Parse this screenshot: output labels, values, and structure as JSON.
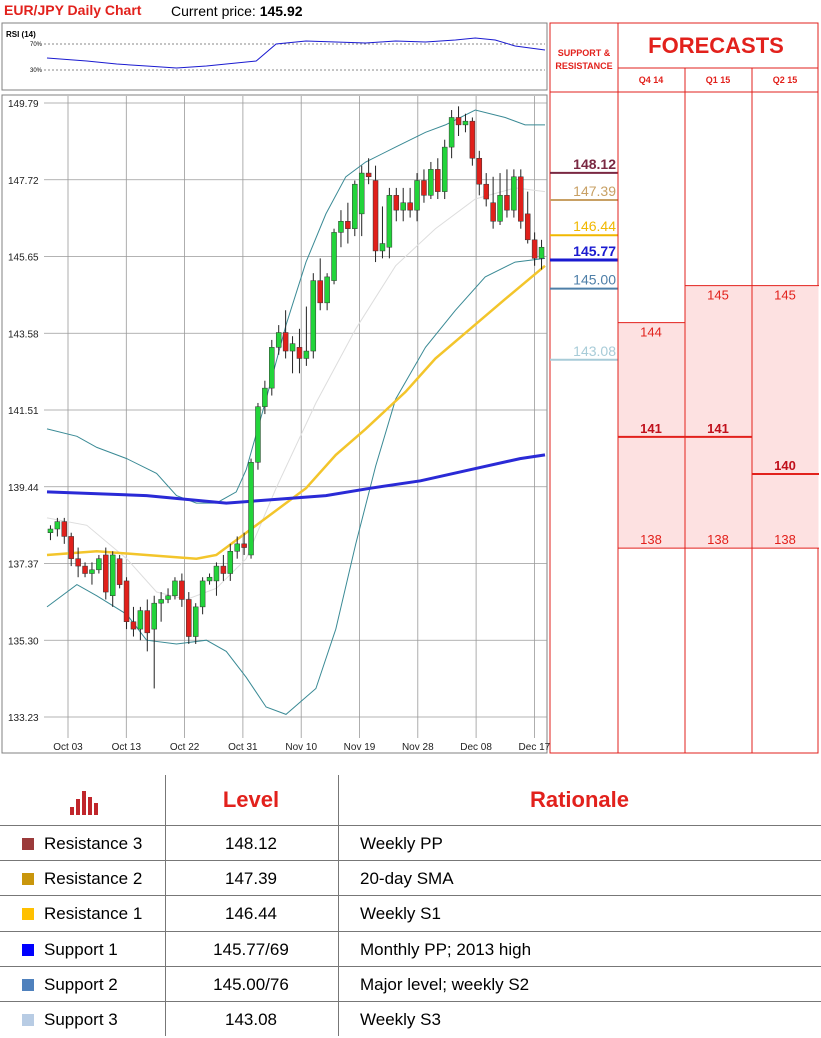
{
  "header": {
    "title": "EUR/JPY Daily Chart",
    "price_label": "Current price:",
    "price_value": "145.92"
  },
  "rsi": {
    "label": "RSI (14)",
    "levels": [
      "70%",
      "30%"
    ]
  },
  "chart_data": {
    "type": "candlestick",
    "title": "EUR/JPY Daily Chart",
    "ylim": [
      133.23,
      149.79
    ],
    "yticks": [
      "149.79",
      "147.72",
      "145.65",
      "143.58",
      "141.51",
      "139.44",
      "137.37",
      "135.30",
      "133.23"
    ],
    "xticks": [
      "Oct 03",
      "Oct 13",
      "Oct 22",
      "Oct 31",
      "Nov 10",
      "Nov 19",
      "Nov 28",
      "Dec 08",
      "Dec 17"
    ],
    "candles": [
      [
        138.2,
        138.4,
        138.0,
        138.3
      ],
      [
        138.3,
        138.6,
        138.1,
        138.5
      ],
      [
        138.5,
        138.6,
        137.9,
        138.1
      ],
      [
        138.1,
        138.2,
        137.3,
        137.5
      ],
      [
        137.5,
        137.8,
        137.0,
        137.3
      ],
      [
        137.3,
        137.4,
        137.0,
        137.1
      ],
      [
        137.1,
        137.4,
        136.8,
        137.2
      ],
      [
        137.2,
        137.6,
        137.1,
        137.5
      ],
      [
        137.6,
        137.8,
        136.4,
        136.6
      ],
      [
        136.5,
        137.7,
        136.2,
        137.6
      ],
      [
        137.5,
        137.6,
        136.7,
        136.8
      ],
      [
        136.9,
        137.0,
        135.6,
        135.8
      ],
      [
        135.8,
        136.2,
        135.4,
        135.6
      ],
      [
        135.6,
        136.2,
        135.3,
        136.1
      ],
      [
        136.1,
        136.4,
        135.0,
        135.5
      ],
      [
        135.6,
        136.5,
        134.0,
        136.3
      ],
      [
        136.3,
        136.6,
        135.8,
        136.4
      ],
      [
        136.4,
        136.7,
        136.3,
        136.5
      ],
      [
        136.5,
        137.0,
        136.4,
        136.9
      ],
      [
        136.9,
        137.1,
        136.2,
        136.4
      ],
      [
        136.4,
        136.6,
        135.2,
        135.4
      ],
      [
        135.4,
        136.3,
        135.2,
        136.2
      ],
      [
        136.2,
        137.0,
        136.0,
        136.9
      ],
      [
        136.9,
        137.1,
        136.8,
        137.0
      ],
      [
        136.9,
        137.4,
        136.5,
        137.3
      ],
      [
        137.3,
        137.6,
        136.9,
        137.1
      ],
      [
        137.1,
        137.9,
        136.9,
        137.7
      ],
      [
        137.7,
        138.1,
        137.5,
        137.9
      ],
      [
        137.9,
        138.2,
        137.6,
        137.8
      ],
      [
        137.6,
        140.2,
        137.5,
        140.1
      ],
      [
        140.1,
        141.7,
        139.9,
        141.6
      ],
      [
        141.6,
        142.3,
        141.4,
        142.1
      ],
      [
        142.1,
        143.4,
        141.9,
        143.2
      ],
      [
        143.2,
        143.8,
        143.0,
        143.6
      ],
      [
        143.6,
        144.2,
        142.9,
        143.1
      ],
      [
        143.1,
        143.5,
        142.5,
        143.3
      ],
      [
        143.2,
        143.7,
        142.5,
        142.9
      ],
      [
        142.9,
        144.3,
        142.7,
        143.1
      ],
      [
        143.1,
        145.2,
        142.9,
        145.0
      ],
      [
        145.0,
        145.6,
        144.2,
        144.4
      ],
      [
        144.4,
        145.2,
        144.2,
        145.1
      ],
      [
        145.0,
        146.4,
        144.9,
        146.3
      ],
      [
        146.3,
        146.9,
        145.9,
        146.6
      ],
      [
        146.6,
        147.1,
        146.0,
        146.4
      ],
      [
        146.4,
        147.7,
        146.2,
        147.6
      ],
      [
        146.8,
        148.1,
        146.2,
        147.9
      ],
      [
        147.9,
        148.3,
        147.6,
        147.8
      ],
      [
        147.7,
        148.1,
        145.5,
        145.8
      ],
      [
        145.8,
        147.0,
        145.6,
        146.0
      ],
      [
        145.9,
        147.5,
        145.6,
        147.3
      ],
      [
        147.3,
        147.5,
        146.6,
        146.9
      ],
      [
        146.9,
        147.5,
        146.6,
        147.1
      ],
      [
        147.1,
        147.5,
        146.7,
        146.9
      ],
      [
        146.9,
        147.9,
        146.6,
        147.7
      ],
      [
        147.7,
        148.0,
        147.1,
        147.3
      ],
      [
        147.3,
        148.2,
        147.2,
        148.0
      ],
      [
        148.0,
        148.3,
        147.2,
        147.4
      ],
      [
        147.4,
        148.8,
        147.2,
        148.6
      ],
      [
        148.6,
        149.6,
        148.3,
        149.4
      ],
      [
        149.4,
        149.7,
        148.9,
        149.2
      ],
      [
        149.2,
        149.5,
        149.0,
        149.3
      ],
      [
        149.3,
        149.4,
        148.1,
        148.3
      ],
      [
        148.3,
        148.5,
        147.3,
        147.6
      ],
      [
        147.6,
        147.9,
        147.0,
        147.2
      ],
      [
        147.1,
        147.8,
        146.4,
        146.6
      ],
      [
        146.6,
        147.9,
        146.5,
        147.3
      ],
      [
        147.3,
        148.0,
        146.7,
        146.9
      ],
      [
        146.9,
        148.0,
        146.7,
        147.8
      ],
      [
        147.8,
        148.0,
        146.4,
        146.6
      ],
      [
        146.8,
        147.4,
        146.0,
        146.1
      ],
      [
        146.1,
        146.3,
        145.4,
        145.6
      ],
      [
        145.6,
        146.1,
        145.3,
        145.9
      ]
    ],
    "sma200": [
      [
        0,
        139.3
      ],
      [
        20,
        139.2
      ],
      [
        36,
        139.0
      ],
      [
        46,
        139.1
      ],
      [
        56,
        139.2
      ],
      [
        65,
        139.4
      ],
      [
        75,
        139.6
      ],
      [
        85,
        139.9
      ],
      [
        95,
        140.2
      ],
      [
        100,
        140.3
      ]
    ],
    "sma55": [
      [
        0,
        137.6
      ],
      [
        10,
        137.7
      ],
      [
        20,
        137.6
      ],
      [
        30,
        137.5
      ],
      [
        34,
        137.6
      ],
      [
        40,
        138.2
      ],
      [
        46,
        138.8
      ],
      [
        52,
        139.4
      ],
      [
        58,
        140.3
      ],
      [
        64,
        141.0
      ],
      [
        72,
        142.0
      ],
      [
        78,
        142.9
      ],
      [
        85,
        143.7
      ],
      [
        92,
        144.5
      ],
      [
        100,
        145.4
      ]
    ],
    "sma20": [
      [
        0,
        138.6
      ],
      [
        8,
        138.4
      ],
      [
        16,
        137.5
      ],
      [
        22,
        136.6
      ],
      [
        28,
        136.4
      ],
      [
        34,
        136.7
      ],
      [
        40,
        137.5
      ],
      [
        46,
        139.4
      ],
      [
        54,
        141.7
      ],
      [
        62,
        143.7
      ],
      [
        70,
        145.4
      ],
      [
        78,
        146.4
      ],
      [
        86,
        147.2
      ],
      [
        94,
        147.5
      ],
      [
        100,
        147.4
      ]
    ],
    "bb_upper": [
      [
        0,
        141.0
      ],
      [
        6,
        140.8
      ],
      [
        10,
        140.5
      ],
      [
        16,
        140.2
      ],
      [
        22,
        139.8
      ],
      [
        26,
        139.2
      ],
      [
        30,
        139.0
      ],
      [
        34,
        139.0
      ],
      [
        38,
        139.3
      ],
      [
        40,
        139.9
      ],
      [
        44,
        141.8
      ],
      [
        48,
        143.8
      ],
      [
        52,
        145.5
      ],
      [
        56,
        146.8
      ],
      [
        60,
        147.8
      ],
      [
        64,
        148.2
      ],
      [
        70,
        148.6
      ],
      [
        76,
        149.0
      ],
      [
        80,
        149.2
      ],
      [
        86,
        149.6
      ],
      [
        92,
        149.4
      ],
      [
        96,
        149.2
      ],
      [
        100,
        149.2
      ]
    ],
    "bb_lower": [
      [
        0,
        136.2
      ],
      [
        6,
        136.8
      ],
      [
        10,
        136.5
      ],
      [
        16,
        136.0
      ],
      [
        20,
        135.3
      ],
      [
        26,
        135.2
      ],
      [
        32,
        135.3
      ],
      [
        36,
        135.0
      ],
      [
        40,
        134.3
      ],
      [
        44,
        133.5
      ],
      [
        48,
        133.3
      ],
      [
        54,
        134.0
      ],
      [
        58,
        135.6
      ],
      [
        62,
        137.9
      ],
      [
        66,
        140.0
      ],
      [
        70,
        141.8
      ],
      [
        76,
        143.2
      ],
      [
        82,
        144.2
      ],
      [
        88,
        145.1
      ],
      [
        94,
        145.5
      ],
      [
        100,
        145.6
      ]
    ],
    "rsi_series": [
      [
        0,
        50
      ],
      [
        8,
        47
      ],
      [
        14,
        44
      ],
      [
        20,
        42
      ],
      [
        26,
        40
      ],
      [
        32,
        42
      ],
      [
        38,
        45
      ],
      [
        42,
        47
      ],
      [
        46,
        64
      ],
      [
        52,
        67
      ],
      [
        58,
        66
      ],
      [
        64,
        65
      ],
      [
        70,
        67
      ],
      [
        76,
        66
      ],
      [
        82,
        68
      ],
      [
        86,
        70
      ],
      [
        90,
        68
      ],
      [
        94,
        62
      ],
      [
        100,
        58
      ]
    ]
  },
  "levels_panel": {
    "title": "SUPPORT & RESISTANCE",
    "levels": [
      {
        "value": "148.12",
        "color": "#7a2842"
      },
      {
        "value": "147.39",
        "color": "#c8a064"
      },
      {
        "value": "146.44",
        "color": "#f1b800"
      },
      {
        "value": "145.77",
        "color": "#1a1ad0"
      },
      {
        "value": "145.00",
        "color": "#4e7fa8"
      },
      {
        "value": "143.08",
        "color": "#a8ccd8"
      }
    ]
  },
  "forecasts": {
    "title": "FORECASTS",
    "columns": [
      {
        "label": "Q4 14",
        "top": "144",
        "mid": "141",
        "bot": "138"
      },
      {
        "label": "Q1 15",
        "top": "145",
        "mid": "141",
        "bot": "138"
      },
      {
        "label": "Q2 15",
        "top": "145",
        "mid": "140",
        "bot": "138"
      }
    ]
  },
  "table": {
    "headers": {
      "level": "Level",
      "rationale": "Rationale"
    },
    "rows": [
      {
        "name": "Resistance 3",
        "level": "148.12",
        "rationale": "Weekly PP",
        "color": "#9b3a3a"
      },
      {
        "name": "Resistance 2",
        "level": "147.39",
        "rationale": "20-day SMA",
        "color": "#c9960c"
      },
      {
        "name": "Resistance 1",
        "level": "146.44",
        "rationale": "Weekly S1",
        "color": "#ffc000"
      },
      {
        "name": "Support 1",
        "level": "145.77/69",
        "rationale": "Monthly PP; 2013 high",
        "color": "#0000ff"
      },
      {
        "name": "Support 2",
        "level": "145.00/76",
        "rationale": "Major level; weekly S2",
        "color": "#4f81bd"
      },
      {
        "name": "Support 3",
        "level": "143.08",
        "rationale": "Weekly S3",
        "color": "#b8cce4"
      }
    ]
  }
}
